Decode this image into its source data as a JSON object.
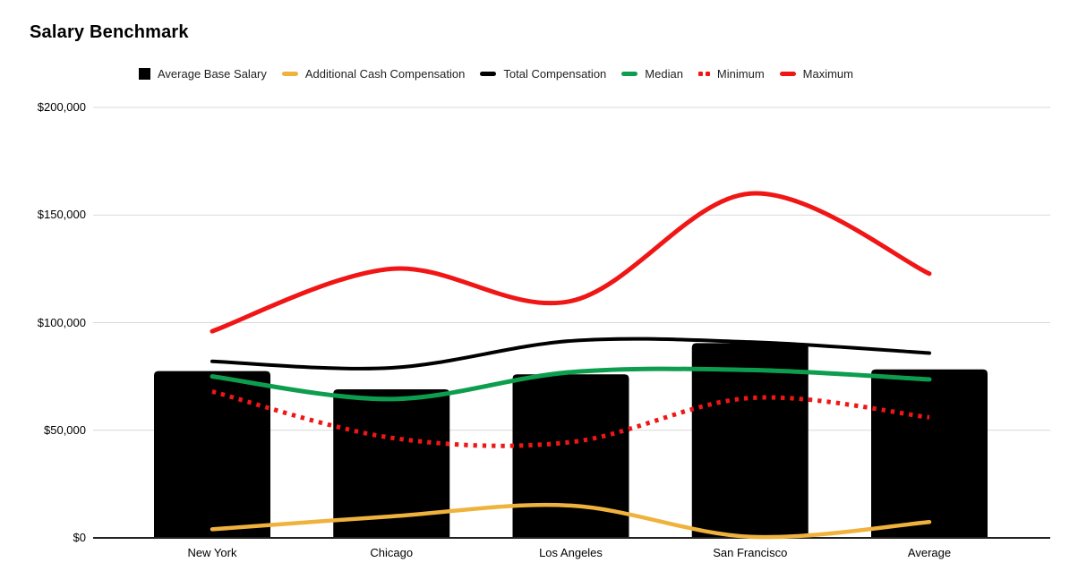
{
  "title": "Salary Benchmark",
  "legend": [
    {
      "label": "Average Base Salary",
      "marker": "square",
      "color": "#000000"
    },
    {
      "label": "Additional Cash Compensation",
      "marker": "line",
      "color": "#efb23c"
    },
    {
      "label": "Total Compensation",
      "marker": "line",
      "color": "#000000"
    },
    {
      "label": "Median",
      "marker": "line",
      "color": "#0d9d4e"
    },
    {
      "label": "Minimum",
      "marker": "dotted",
      "color": "#f01616"
    },
    {
      "label": "Maximum",
      "marker": "line",
      "color": "#f01616"
    }
  ],
  "chart_data": {
    "type": "bar",
    "subtype": "combo-bar-with-smooth-lines",
    "title": "Salary Benchmark",
    "xlabel": "",
    "ylabel": "",
    "categories": [
      "New York",
      "Chicago",
      "Los Angeles",
      "San Francisco",
      "Average"
    ],
    "bar_series": {
      "name": "Average Base Salary",
      "color": "#000000",
      "values": [
        77500,
        69000,
        76000,
        90500,
        78250
      ]
    },
    "line_series": [
      {
        "name": "Additional Cash Compensation",
        "color": "#efb23c",
        "style": "solid",
        "values": [
          4000,
          10000,
          15000,
          500,
          7375
        ]
      },
      {
        "name": "Total Compensation",
        "color": "#000000",
        "style": "solid",
        "values": [
          82000,
          79000,
          91500,
          91000,
          85875
        ]
      },
      {
        "name": "Median",
        "color": "#0d9d4e",
        "style": "solid",
        "values": [
          75000,
          64500,
          77000,
          78000,
          73625
        ]
      },
      {
        "name": "Minimum",
        "color": "#f01616",
        "style": "dotted",
        "values": [
          68000,
          46500,
          44500,
          65000,
          56000
        ]
      },
      {
        "name": "Maximum",
        "color": "#f01616",
        "style": "solid",
        "values": [
          96000,
          125000,
          110000,
          160000,
          122750
        ]
      }
    ],
    "ylim": [
      0,
      200000
    ],
    "yticks": [
      0,
      50000,
      100000,
      150000,
      200000
    ],
    "ytick_labels": [
      "$0",
      "$50,000",
      "$100,000",
      "$150,000",
      "$200,000"
    ],
    "grid": true,
    "gridline_color": "#d9d9d9",
    "axis_line_color": "#212121",
    "legend_position": "top"
  }
}
